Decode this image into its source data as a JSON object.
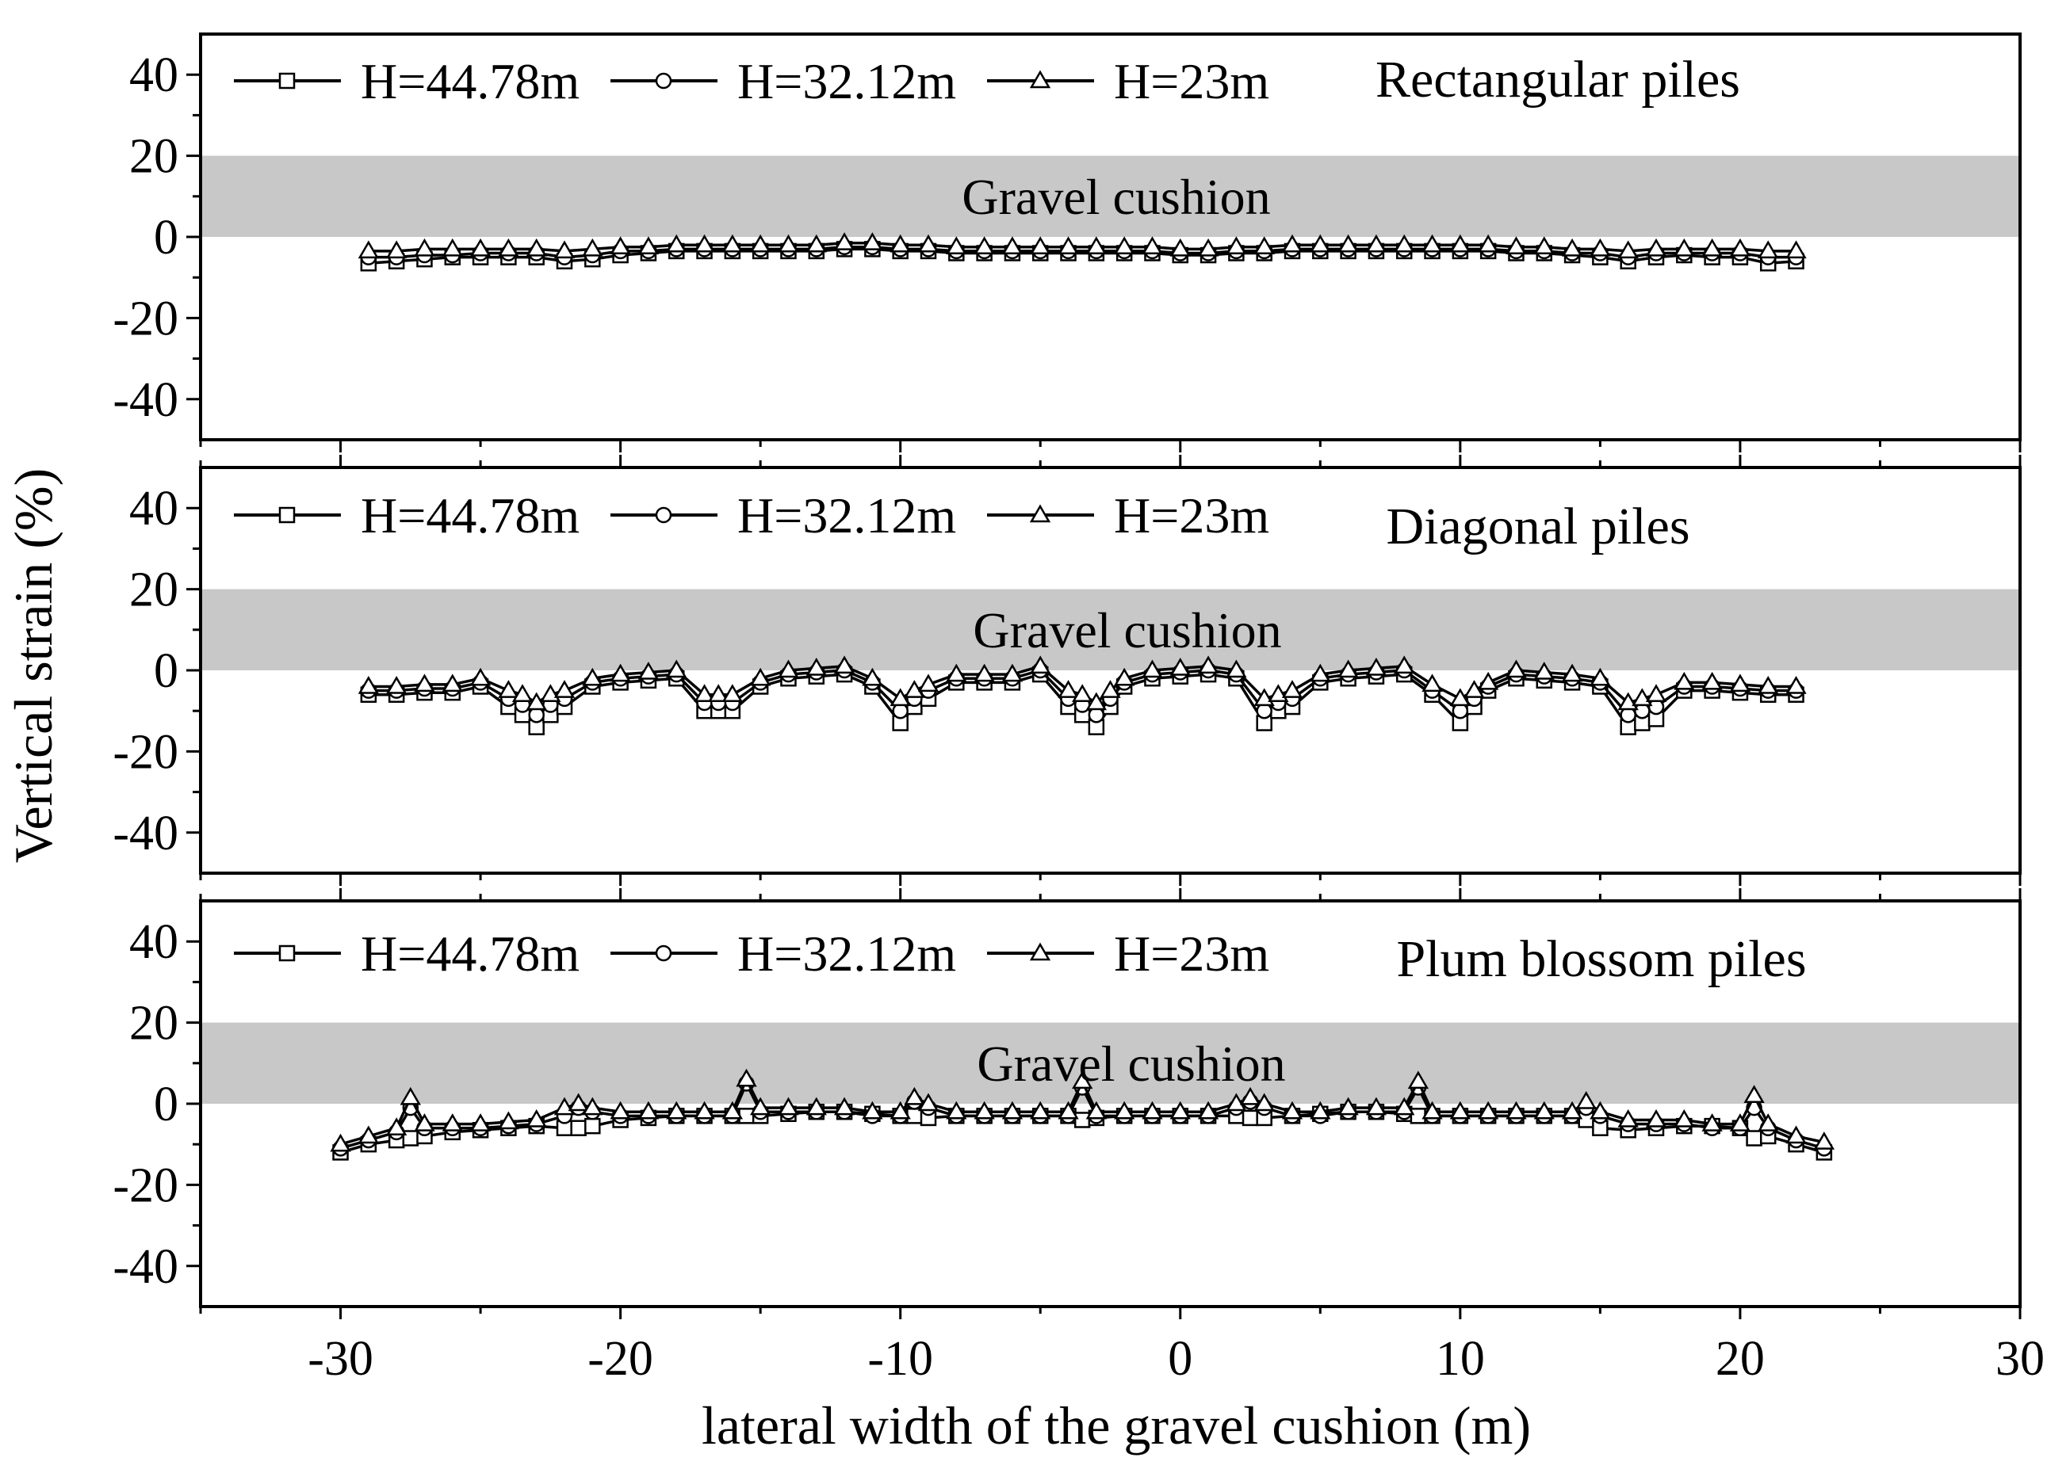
{
  "chart_data": {
    "type": "line",
    "ylabel": "Vertical strain (%)",
    "xlabel": "lateral width of the gravel cushion (m)",
    "xlim": [
      -35,
      30
    ],
    "x_ticks": [
      -30,
      -20,
      -10,
      0,
      10,
      20,
      30
    ],
    "x_tick_labels": [
      "-30",
      "-20",
      "-10",
      "0",
      "10",
      "20",
      "30"
    ],
    "band_range": [
      0,
      20
    ],
    "band_color": "#c8c8c8",
    "line_color": "#000000",
    "series_names": [
      "H=44.78m",
      "H=32.12m",
      "H=23m"
    ],
    "series_markers": [
      "square",
      "circle",
      "triangle"
    ],
    "panels": [
      {
        "title": "Rectangular piles",
        "band_label": "Gravel cushion",
        "ylim": [
          -50,
          50
        ],
        "y_ticks": [
          40,
          20,
          0,
          -20,
          -40
        ],
        "y_tick_labels": [
          "40",
          "20",
          "0",
          "-20",
          "-40"
        ],
        "x": [
          -29,
          -28,
          -27,
          -26,
          -25,
          -24,
          -23,
          -22,
          -21,
          -20,
          -19,
          -18,
          -17,
          -16,
          -15,
          -14,
          -13,
          -12,
          -11,
          -10,
          -9,
          -8,
          -7,
          -6,
          -5,
          -4,
          -3,
          -2,
          -1,
          0,
          1,
          2,
          3,
          4,
          5,
          6,
          7,
          8,
          9,
          10,
          11,
          12,
          13,
          14,
          15,
          16,
          17,
          18,
          19,
          20,
          21,
          22
        ],
        "series": [
          {
            "name": "H=44.78m",
            "values": [
              -6.5,
              -6,
              -5.5,
              -5,
              -5,
              -5,
              -5,
              -6,
              -5.5,
              -4.5,
              -4,
              -3.5,
              -3.5,
              -3.5,
              -3.5,
              -3.5,
              -3.5,
              -3,
              -3,
              -3.5,
              -3.5,
              -4,
              -4,
              -4,
              -4,
              -4,
              -4,
              -4,
              -4,
              -4.5,
              -4.5,
              -4,
              -4,
              -3.5,
              -3.5,
              -3.5,
              -3.5,
              -3.5,
              -3.5,
              -3.5,
              -3.5,
              -4,
              -4,
              -4.5,
              -5,
              -6,
              -5,
              -4.5,
              -5,
              -5,
              -6.5,
              -6
            ]
          },
          {
            "name": "H=32.12m",
            "values": [
              -5,
              -5,
              -4.5,
              -4.5,
              -4,
              -4,
              -4,
              -5,
              -4.5,
              -3.5,
              -3.5,
              -3,
              -3,
              -3,
              -3,
              -3,
              -3,
              -2.5,
              -2.5,
              -3,
              -3,
              -3.5,
              -3.5,
              -3.5,
              -3.5,
              -3.5,
              -3.5,
              -3.5,
              -3.5,
              -4,
              -4,
              -3.5,
              -3.5,
              -3,
              -3,
              -3,
              -3,
              -3,
              -3,
              -3,
              -3,
              -3.5,
              -3.5,
              -4,
              -4,
              -5,
              -4,
              -4,
              -4,
              -4,
              -5,
              -5
            ]
          },
          {
            "name": "H=23m",
            "values": [
              -3.5,
              -3.5,
              -3,
              -3,
              -3,
              -3,
              -3,
              -3.5,
              -3,
              -2.5,
              -2.5,
              -2,
              -2,
              -2,
              -2,
              -2,
              -2,
              -1.5,
              -1.5,
              -2,
              -2,
              -2.5,
              -2.5,
              -2.5,
              -2.5,
              -2.5,
              -2.5,
              -2.5,
              -2.5,
              -3,
              -3,
              -2.5,
              -2.5,
              -2,
              -2,
              -2,
              -2,
              -2,
              -2,
              -2,
              -2,
              -2.5,
              -2.5,
              -3,
              -3,
              -3.5,
              -3,
              -3,
              -3,
              -3,
              -3.5,
              -3.5
            ]
          }
        ]
      },
      {
        "title": "Diagonal piles",
        "band_label": "Gravel cushion",
        "ylim": [
          -50,
          50
        ],
        "y_ticks": [
          40,
          20,
          0,
          -20,
          -40
        ],
        "y_tick_labels": [
          "40",
          "20",
          "0",
          "-20",
          "-40"
        ],
        "x": [
          -29,
          -28,
          -27,
          -26,
          -25,
          -24,
          -23.5,
          -23,
          -22.5,
          -22,
          -21,
          -20,
          -19,
          -18,
          -17,
          -16.5,
          -16,
          -15,
          -14,
          -13,
          -12,
          -11,
          -10,
          -9.5,
          -9,
          -8,
          -7,
          -6,
          -5,
          -4,
          -3.5,
          -3,
          -2.5,
          -2,
          -1,
          0,
          1,
          2,
          3,
          3.5,
          4,
          5,
          6,
          7,
          8,
          9,
          10,
          10.5,
          11,
          12,
          13,
          14,
          15,
          16,
          16.5,
          17,
          18,
          19,
          20,
          21,
          22
        ],
        "series": [
          {
            "name": "H=44.78m",
            "values": [
              -6,
              -6,
              -5.5,
              -5.5,
              -4,
              -9,
              -11,
              -14,
              -11,
              -9,
              -4,
              -3,
              -2.5,
              -2,
              -10,
              -10,
              -10,
              -4,
              -2,
              -1.5,
              -1,
              -4,
              -13,
              -9,
              -7,
              -3,
              -3,
              -3,
              -1,
              -9,
              -11,
              -14,
              -9,
              -4,
              -2,
              -1.5,
              -1,
              -2,
              -13,
              -10,
              -9,
              -3,
              -2,
              -1.5,
              -1,
              -6,
              -13,
              -9,
              -5,
              -2,
              -2.5,
              -3,
              -4,
              -14,
              -13,
              -12,
              -5,
              -5,
              -5.5,
              -6,
              -6
            ]
          },
          {
            "name": "H=32.12m",
            "values": [
              -5,
              -5,
              -4.5,
              -4.5,
              -3,
              -7,
              -8.5,
              -11,
              -8.5,
              -7,
              -3,
              -2,
              -1.5,
              -1,
              -8,
              -8,
              -8,
              -3,
              -1,
              -0.5,
              0,
              -3,
              -10,
              -7,
              -5,
              -2,
              -2,
              -2,
              0,
              -7,
              -8.5,
              -11,
              -7,
              -3,
              -1,
              -0.5,
              0,
              -1,
              -10,
              -8,
              -7,
              -2,
              -1,
              -0.5,
              0,
              -5,
              -10,
              -7,
              -4,
              -1,
              -1.5,
              -2,
              -3,
              -11,
              -10,
              -9,
              -4,
              -4,
              -4.5,
              -5,
              -5
            ]
          },
          {
            "name": "H=23m",
            "values": [
              -4,
              -4,
              -3.5,
              -3.5,
              -2,
              -5,
              -6,
              -8,
              -6,
              -5,
              -2,
              -1,
              -0.5,
              0,
              -6,
              -6,
              -6,
              -2,
              0,
              0.5,
              1,
              -2,
              -7,
              -5,
              -3.5,
              -1,
              -1,
              -1,
              1,
              -5,
              -6,
              -8,
              -5,
              -2,
              0,
              0.5,
              1,
              0,
              -7,
              -6,
              -5,
              -1,
              0,
              0.5,
              1,
              -3.5,
              -7,
              -5,
              -3,
              0,
              -0.5,
              -1,
              -2,
              -8,
              -7,
              -6,
              -3,
              -3,
              -3.5,
              -4,
              -4
            ]
          }
        ]
      },
      {
        "title": "Plum blossom piles",
        "band_label": "Gravel cushion",
        "ylim": [
          -50,
          50
        ],
        "y_ticks": [
          40,
          20,
          0,
          -20,
          -40
        ],
        "y_tick_labels": [
          "40",
          "20",
          "0",
          "-20",
          "-40"
        ],
        "x": [
          -30,
          -29,
          -28,
          -27.5,
          -27,
          -26,
          -25,
          -24,
          -23,
          -22,
          -21.5,
          -21,
          -20,
          -19,
          -18,
          -17,
          -16,
          -15.5,
          -15,
          -14,
          -13,
          -12,
          -11,
          -10,
          -9.5,
          -9,
          -8,
          -7,
          -6,
          -5,
          -4,
          -3.5,
          -3,
          -2,
          -1,
          0,
          1,
          2,
          2.5,
          3,
          4,
          5,
          6,
          7,
          8,
          8.5,
          9,
          10,
          11,
          12,
          13,
          14,
          14.5,
          15,
          16,
          17,
          18,
          19,
          20,
          20.5,
          21,
          22,
          23
        ],
        "series": [
          {
            "name": "H=44.78m",
            "values": [
              -12,
              -10,
              -9,
              -8.5,
              -8,
              -7,
              -6.5,
              -6,
              -5.5,
              -6,
              -6,
              -5.5,
              -4,
              -3.5,
              -3,
              -3,
              -3,
              -3,
              -3,
              -2.5,
              -2,
              -2,
              -2.5,
              -3,
              -3,
              -3.5,
              -3,
              -3,
              -3,
              -3,
              -3,
              -4,
              -3.5,
              -3,
              -3,
              -3,
              -3,
              -3,
              -3.5,
              -3.5,
              -3,
              -2.5,
              -2,
              -2,
              -2.5,
              -3,
              -3,
              -3,
              -3,
              -3,
              -3,
              -3,
              -4,
              -6,
              -6.5,
              -6,
              -5.5,
              -5.5,
              -6,
              -8.5,
              -8,
              -10,
              -12
            ]
          },
          {
            "name": "H=32.12m",
            "values": [
              -11,
              -9,
              -7,
              -1,
              -6,
              -6,
              -6,
              -5.5,
              -5,
              -3,
              -1,
              -2,
              -3,
              -3,
              -3,
              -3,
              -3,
              5,
              -2,
              -2,
              -2,
              -2,
              -3,
              -3,
              0.5,
              -1,
              -3,
              -3,
              -3,
              -3,
              -3,
              4,
              -3,
              -3,
              -3,
              -3,
              -3,
              -1,
              0.5,
              -1,
              -3,
              -3,
              -2,
              -2,
              -2,
              4,
              -3,
              -3,
              -3,
              -3,
              -3,
              -3,
              -1,
              -3,
              -5,
              -5,
              -5,
              -6,
              -6,
              -1,
              -6,
              -9,
              -11
            ]
          },
          {
            "name": "H=23m",
            "values": [
              -10,
              -8,
              -6,
              1.5,
              -5,
              -5,
              -5,
              -4.5,
              -4,
              -1,
              0,
              -1,
              -2,
              -2,
              -2,
              -2,
              -2,
              6,
              -1,
              -1,
              -1,
              -1,
              -2,
              -2,
              1.5,
              0,
              -2,
              -2,
              -2,
              -2,
              -2,
              5.5,
              -2,
              -2,
              -2,
              -2,
              -2,
              0,
              1.5,
              0,
              -2,
              -2,
              -1,
              -1,
              -1,
              5.5,
              -2,
              -2,
              -2,
              -2,
              -2,
              -2,
              0.5,
              -2,
              -4,
              -4,
              -4,
              -5,
              -5,
              2,
              -5,
              -8,
              -9.5
            ]
          }
        ]
      }
    ]
  }
}
